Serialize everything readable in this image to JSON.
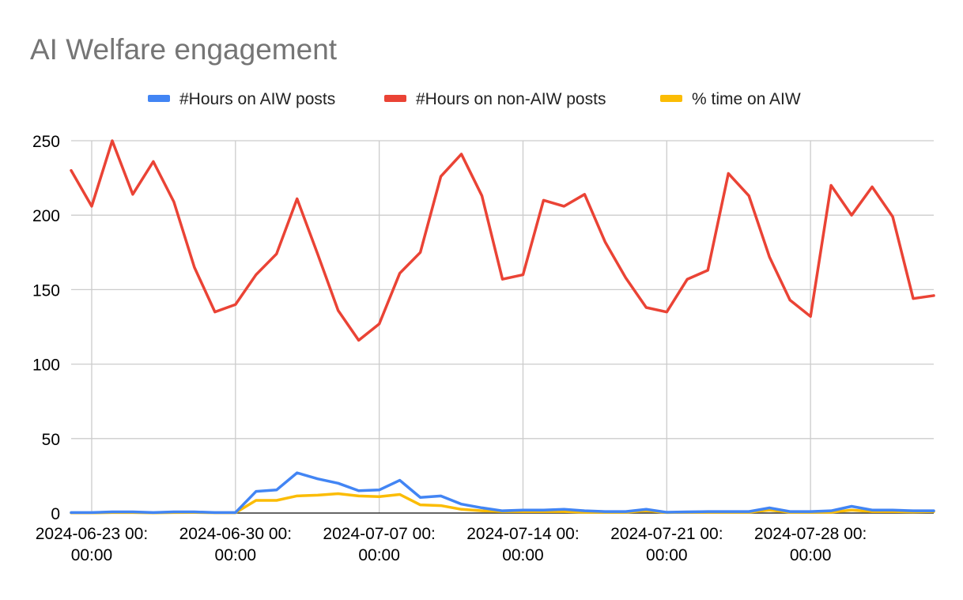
{
  "chart_data": {
    "type": "line",
    "title": "AI Welfare engagement",
    "xlabel": "",
    "ylabel": "",
    "ylim": [
      0,
      250
    ],
    "yticks": [
      0,
      50,
      100,
      150,
      200,
      250
    ],
    "grid": true,
    "legend_position": "top",
    "x_tick_labels": [
      {
        "index": 1,
        "line1": "2024-06-23 00:",
        "line2": "00:00"
      },
      {
        "index": 8,
        "line1": "2024-06-30 00:",
        "line2": "00:00"
      },
      {
        "index": 15,
        "line1": "2024-07-07 00:",
        "line2": "00:00"
      },
      {
        "index": 22,
        "line1": "2024-07-14 00:",
        "line2": "00:00"
      },
      {
        "index": 29,
        "line1": "2024-07-21 00:",
        "line2": "00:00"
      },
      {
        "index": 36,
        "line1": "2024-07-28 00:",
        "line2": "00:00"
      }
    ],
    "x": [
      "2024-06-22",
      "2024-06-23",
      "2024-06-24",
      "2024-06-25",
      "2024-06-26",
      "2024-06-27",
      "2024-06-28",
      "2024-06-29",
      "2024-06-30",
      "2024-07-01",
      "2024-07-02",
      "2024-07-03",
      "2024-07-04",
      "2024-07-05",
      "2024-07-06",
      "2024-07-07",
      "2024-07-08",
      "2024-07-09",
      "2024-07-10",
      "2024-07-11",
      "2024-07-12",
      "2024-07-13",
      "2024-07-14",
      "2024-07-15",
      "2024-07-16",
      "2024-07-17",
      "2024-07-18",
      "2024-07-19",
      "2024-07-20",
      "2024-07-21",
      "2024-07-22",
      "2024-07-23",
      "2024-07-24",
      "2024-07-25",
      "2024-07-26",
      "2024-07-27",
      "2024-07-28",
      "2024-07-29",
      "2024-07-30",
      "2024-07-31",
      "2024-08-01",
      "2024-08-02",
      "2024-08-03"
    ],
    "series": [
      {
        "name": "#Hours on AIW posts",
        "color": "#4285F4",
        "values": [
          0.3,
          0.3,
          0.8,
          0.8,
          0.3,
          0.8,
          0.8,
          0.3,
          0.3,
          14.5,
          15.5,
          27,
          23,
          20,
          15,
          15.5,
          22,
          10.5,
          11.5,
          6,
          3.5,
          1.5,
          2,
          2,
          2.5,
          1.5,
          1,
          1,
          2.5,
          0.5,
          0.8,
          1,
          1,
          1,
          3.5,
          1,
          1,
          1.5,
          4.5,
          2,
          2,
          1.5,
          1.5
        ]
      },
      {
        "name": "#Hours on non-AIW posts",
        "color": "#EA4335",
        "values": [
          230,
          206,
          250,
          214,
          236,
          209,
          165,
          135,
          140,
          160,
          174,
          211,
          174,
          136,
          116,
          127,
          161,
          175,
          226,
          241,
          213,
          157,
          160,
          210,
          206,
          214,
          182,
          158,
          138,
          135,
          157,
          163,
          228,
          213,
          172,
          143,
          132,
          220,
          200,
          219,
          199,
          144,
          146
        ]
      },
      {
        "name": "% time on AIW",
        "color": "#FBBC04",
        "values": [
          0.1,
          0.1,
          0.3,
          0.3,
          0.1,
          0.3,
          0.4,
          0.2,
          0.2,
          8.5,
          8.5,
          11.5,
          12,
          13,
          11.5,
          11,
          12.5,
          5.5,
          5,
          2.5,
          1.5,
          1,
          1,
          1,
          1,
          0.5,
          0.5,
          0.5,
          1.5,
          0.3,
          0.5,
          0.5,
          0.5,
          0.5,
          2,
          0.5,
          0.5,
          0.5,
          2,
          1,
          1,
          0.8,
          1
        ]
      }
    ]
  }
}
